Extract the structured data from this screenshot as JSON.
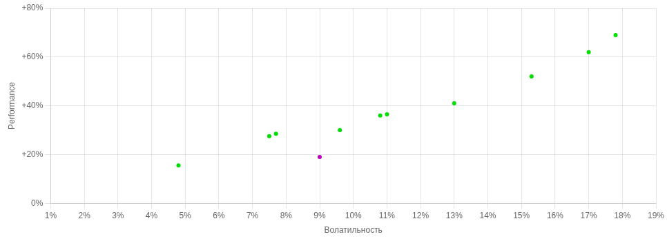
{
  "chart_data": {
    "type": "scatter",
    "xlabel": "Волатильность",
    "ylabel": "Performance",
    "xlim": [
      0.01,
      0.19
    ],
    "ylim": [
      0.0,
      0.8
    ],
    "xticks": [
      {
        "value": 0.01,
        "label": "1%"
      },
      {
        "value": 0.02,
        "label": "2%"
      },
      {
        "value": 0.03,
        "label": "3%"
      },
      {
        "value": 0.04,
        "label": "4%"
      },
      {
        "value": 0.05,
        "label": "5%"
      },
      {
        "value": 0.06,
        "label": "6%"
      },
      {
        "value": 0.07,
        "label": "7%"
      },
      {
        "value": 0.08,
        "label": "8%"
      },
      {
        "value": 0.09,
        "label": "9%"
      },
      {
        "value": 0.1,
        "label": "10%"
      },
      {
        "value": 0.11,
        "label": "11%"
      },
      {
        "value": 0.12,
        "label": "12%"
      },
      {
        "value": 0.13,
        "label": "13%"
      },
      {
        "value": 0.14,
        "label": "14%"
      },
      {
        "value": 0.15,
        "label": "15%"
      },
      {
        "value": 0.16,
        "label": "16%"
      },
      {
        "value": 0.17,
        "label": "17%"
      },
      {
        "value": 0.18,
        "label": "18%"
      },
      {
        "value": 0.19,
        "label": "19%"
      }
    ],
    "yticks": [
      {
        "value": 0.0,
        "label": "0%"
      },
      {
        "value": 0.2,
        "label": "+20%"
      },
      {
        "value": 0.4,
        "label": "+40%"
      },
      {
        "value": 0.6,
        "label": "+60%"
      },
      {
        "value": 0.8,
        "label": "+80%"
      }
    ],
    "grid": true,
    "series": [
      {
        "color": "#00dd00",
        "x": [
          0.048,
          0.075,
          0.077,
          0.096,
          0.108,
          0.11,
          0.13,
          0.153,
          0.17,
          0.178
        ],
        "values": [
          0.155,
          0.275,
          0.285,
          0.3,
          0.36,
          0.365,
          0.41,
          0.52,
          0.62,
          0.69
        ]
      },
      {
        "color": "#bb00bb",
        "x": [
          0.09
        ],
        "values": [
          0.19
        ]
      }
    ]
  }
}
